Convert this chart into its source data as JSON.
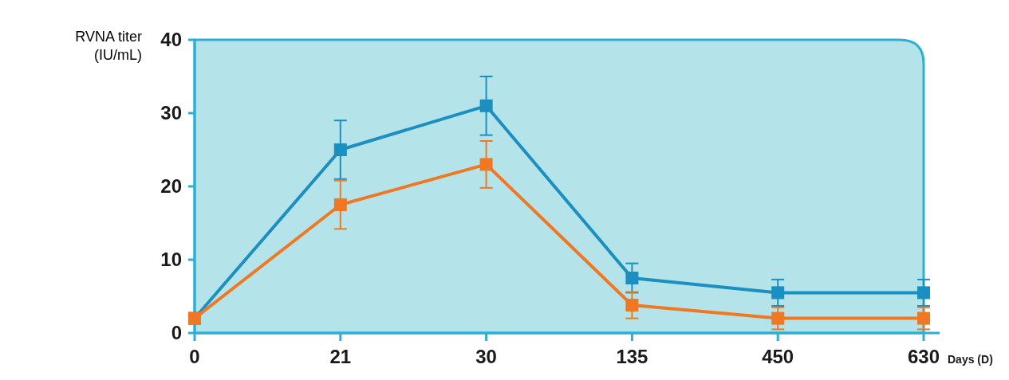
{
  "chart_data": {
    "type": "line",
    "xlabel": "Days (D)",
    "ylabel": "RVNA titer (IU/mL)",
    "categories": [
      "0",
      "21",
      "30",
      "135",
      "450",
      "630"
    ],
    "ylim": [
      0,
      40
    ],
    "yticks": [
      0,
      10,
      20,
      30,
      40
    ],
    "grid": false,
    "marker": "square",
    "line_style": "solid",
    "series": [
      {
        "color": "#1a8fc0",
        "values": [
          2,
          25,
          31,
          7.5,
          5.5,
          5.5
        ],
        "errors": [
          null,
          4,
          4,
          2,
          1.8,
          1.8
        ]
      },
      {
        "color": "#f07822",
        "values": [
          2,
          17.5,
          23,
          3.8,
          2,
          2
        ],
        "errors": [
          null,
          3.3,
          3.2,
          1.8,
          1.5,
          1.5
        ]
      }
    ]
  }
}
